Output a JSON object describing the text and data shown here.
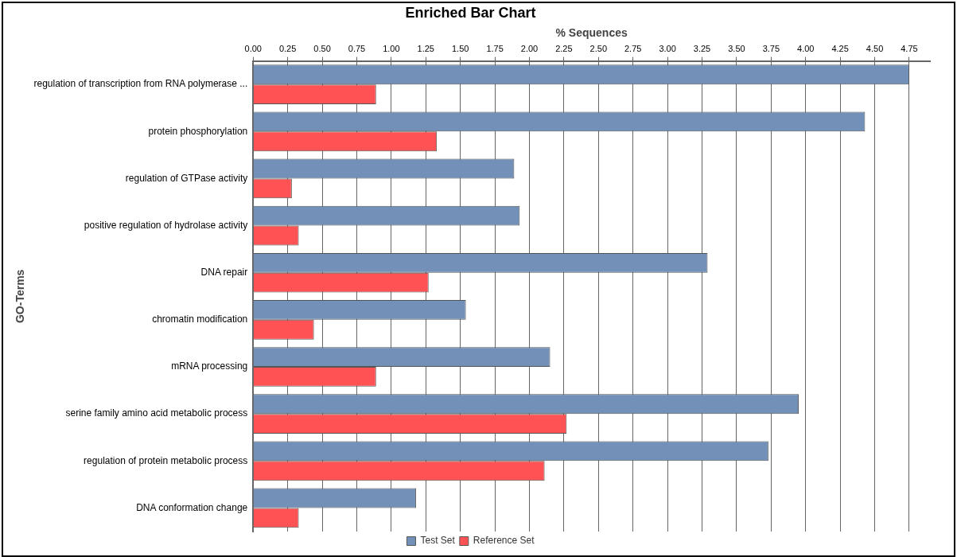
{
  "chart_data": {
    "type": "bar",
    "orientation": "horizontal",
    "title": "Enriched Bar Chart",
    "xlabel": "% Sequences",
    "ylabel": "GO-Terms",
    "categories": [
      "regulation of transcription from RNA polymerase ...",
      "protein phosphorylation",
      "regulation of GTPase activity",
      "positive regulation of hydrolase activity",
      "DNA repair",
      "chromatin modification",
      "mRNA processing",
      "serine family amino acid metabolic process",
      "regulation of protein metabolic process",
      "DNA conformation change"
    ],
    "series": [
      {
        "name": "Test Set",
        "color": "#7290b8",
        "values": [
          4.75,
          4.43,
          1.89,
          1.93,
          3.29,
          1.54,
          2.15,
          3.95,
          3.73,
          1.18
        ]
      },
      {
        "name": "Reference Set",
        "color": "#fe5254",
        "values": [
          0.89,
          1.33,
          0.28,
          0.33,
          1.27,
          0.44,
          0.89,
          2.27,
          2.11,
          0.33
        ]
      }
    ],
    "xlim": [
      0,
      4.9
    ],
    "xticks": [
      {
        "value": 0,
        "label": "0.00"
      },
      {
        "value": 0.25,
        "label": "0.25"
      },
      {
        "value": 0.5,
        "label": "0.50"
      },
      {
        "value": 0.75,
        "label": "0.75"
      },
      {
        "value": 1,
        "label": "1.00"
      },
      {
        "value": 1.25,
        "label": "1.25"
      },
      {
        "value": 1.5,
        "label": "1.50"
      },
      {
        "value": 1.75,
        "label": "1.75"
      },
      {
        "value": 2,
        "label": "2.00"
      },
      {
        "value": 2.25,
        "label": "2.25"
      },
      {
        "value": 2.5,
        "label": "2.50"
      },
      {
        "value": 2.75,
        "label": "2.75"
      },
      {
        "value": 3,
        "label": "3.00"
      },
      {
        "value": 3.25,
        "label": "3.25"
      },
      {
        "value": 3.5,
        "label": "3.50"
      },
      {
        "value": 3.75,
        "label": "3.75"
      },
      {
        "value": 4,
        "label": "4.00"
      },
      {
        "value": 4.25,
        "label": "4.25"
      },
      {
        "value": 4.5,
        "label": "4.50"
      },
      {
        "value": 4.75,
        "label": "4.75"
      }
    ],
    "grid": "x",
    "legend": "bottom"
  }
}
